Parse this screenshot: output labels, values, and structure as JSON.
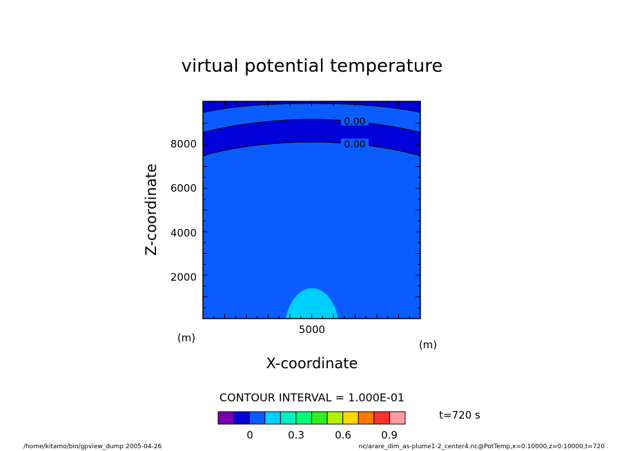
{
  "chart_data": {
    "type": "contour",
    "title": "virtual potential temperature",
    "xlabel": "X-coordinate",
    "ylabel": "Z-coordinate",
    "x_unit": "(m)",
    "y_unit": "(m)",
    "xlim": [
      0,
      10000
    ],
    "ylim": [
      0,
      10000
    ],
    "x_tick_labels": [
      {
        "value": 5000,
        "label": "5000"
      }
    ],
    "y_tick_labels": [
      {
        "value": 2000,
        "label": "2000"
      },
      {
        "value": 4000,
        "label": "4000"
      },
      {
        "value": 6000,
        "label": "6000"
      },
      {
        "value": 8000,
        "label": "8000"
      }
    ],
    "contour_labels": [
      "0.00",
      "0.00"
    ],
    "contour_interval_text": "CONTOUR INTERVAL = 1.000E-01",
    "time_text": "t=720 s",
    "colorbar": {
      "colors": [
        "#7a00b0",
        "#0000d8",
        "#0a5cff",
        "#00d0ff",
        "#00f0c0",
        "#00ff78",
        "#30ee20",
        "#b0f000",
        "#ffd800",
        "#ff7800",
        "#ff3030",
        "#ff9aa0"
      ],
      "tick_labels": [
        "0",
        "0.3",
        "0.6",
        "0.9"
      ]
    },
    "regions": [
      {
        "level": "top band",
        "color": "#0000d8"
      },
      {
        "level": "upper band",
        "color": "#0a5cff"
      },
      {
        "level": "mid band",
        "color": "#0000d8"
      },
      {
        "level": "background",
        "color": "#0a5cff"
      },
      {
        "level": "plume",
        "color": "#00d0ff"
      }
    ]
  },
  "footer": {
    "left": "/home/kitamo/bin/gpview_dump  2005-04-26",
    "right": "nc/arare_dim_as-plume1-2_center4.nc@PotTemp,x=0:10000,z=0:10000,t=720"
  }
}
